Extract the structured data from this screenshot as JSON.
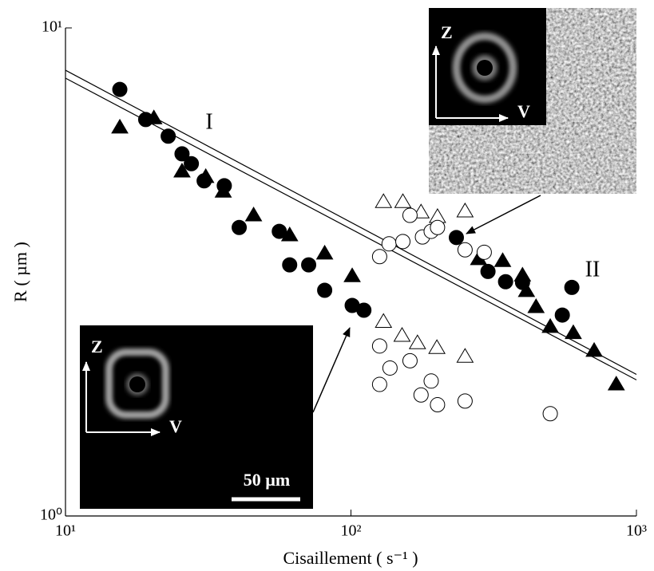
{
  "chart_data": {
    "type": "scatter",
    "xlabel": "Cisaillement ( s⁻¹ )",
    "ylabel": "R ( µm )",
    "log_x": true,
    "log_y": true,
    "xlim": [
      10,
      1000
    ],
    "ylim": [
      1,
      10
    ],
    "xticks": [
      {
        "value": 10,
        "label": "10¹"
      },
      {
        "value": 100,
        "label": "10²"
      },
      {
        "value": 1000,
        "label": "10³"
      }
    ],
    "yticks": [
      {
        "value": 1,
        "label": "10⁰"
      },
      {
        "value": 10,
        "label": "10¹"
      }
    ],
    "annotations": [
      "I",
      "II"
    ],
    "insets": [
      {
        "axis_labels": [
          "Z",
          "V"
        ]
      },
      {
        "axis_labels": [
          "Z",
          "V"
        ],
        "scale_bar": "50 µm"
      }
    ],
    "series": [
      {
        "marker": "circle",
        "filled": true,
        "color": "#000000",
        "x": [
          15.5,
          19.1,
          22.9,
          25.6,
          27.6,
          30.6,
          36.0,
          40.6,
          56.1,
          61.0,
          71.1,
          80.9,
          101,
          111,
          234,
          302,
          348,
          399,
          594,
          550
        ],
        "values": [
          7.48,
          6.49,
          6.0,
          5.52,
          5.27,
          4.86,
          4.75,
          3.9,
          3.83,
          3.27,
          3.27,
          2.9,
          2.7,
          2.64,
          3.72,
          3.17,
          3.02,
          3.01,
          2.94,
          2.58
        ]
      },
      {
        "marker": "triangle",
        "filled": true,
        "color": "#000000",
        "x": [
          15.5,
          20.4,
          25.6,
          31.0,
          35.7,
          45.6,
          61.0,
          80.9,
          101,
          280,
          340,
          399,
          412,
          445,
          499,
          601,
          711,
          850
        ],
        "values": [
          6.25,
          6.53,
          5.08,
          4.95,
          4.62,
          4.13,
          3.76,
          3.45,
          3.1,
          3.36,
          3.33,
          3.11,
          2.89,
          2.68,
          2.44,
          2.37,
          2.18,
          1.86
        ]
      },
      {
        "marker": "triangle",
        "filled": false,
        "color": "#000000",
        "x": [
          130,
          152,
          176,
          201,
          251,
          130,
          151,
          171,
          200,
          251
        ],
        "values": [
          4.4,
          4.4,
          4.19,
          4.1,
          4.21,
          2.5,
          2.34,
          2.26,
          2.21,
          2.12
        ]
      },
      {
        "marker": "circle",
        "filled": false,
        "color": "#000000",
        "x": [
          126,
          136,
          152,
          161,
          178,
          191,
          201,
          251,
          293,
          126,
          137,
          126,
          161,
          176,
          191,
          201,
          251,
          499
        ],
        "values": [
          3.4,
          3.61,
          3.65,
          4.13,
          3.73,
          3.83,
          3.9,
          3.51,
          3.47,
          2.23,
          2.01,
          1.86,
          2.08,
          1.77,
          1.89,
          1.69,
          1.72,
          1.62
        ]
      }
    ],
    "fit_lines": [
      {
        "color": "#000000",
        "x": [
          10,
          1000
        ],
        "values": [
          8.19,
          1.95
        ]
      },
      {
        "color": "#000000",
        "x": [
          10,
          1000
        ],
        "values": [
          7.89,
          1.9
        ]
      }
    ]
  }
}
